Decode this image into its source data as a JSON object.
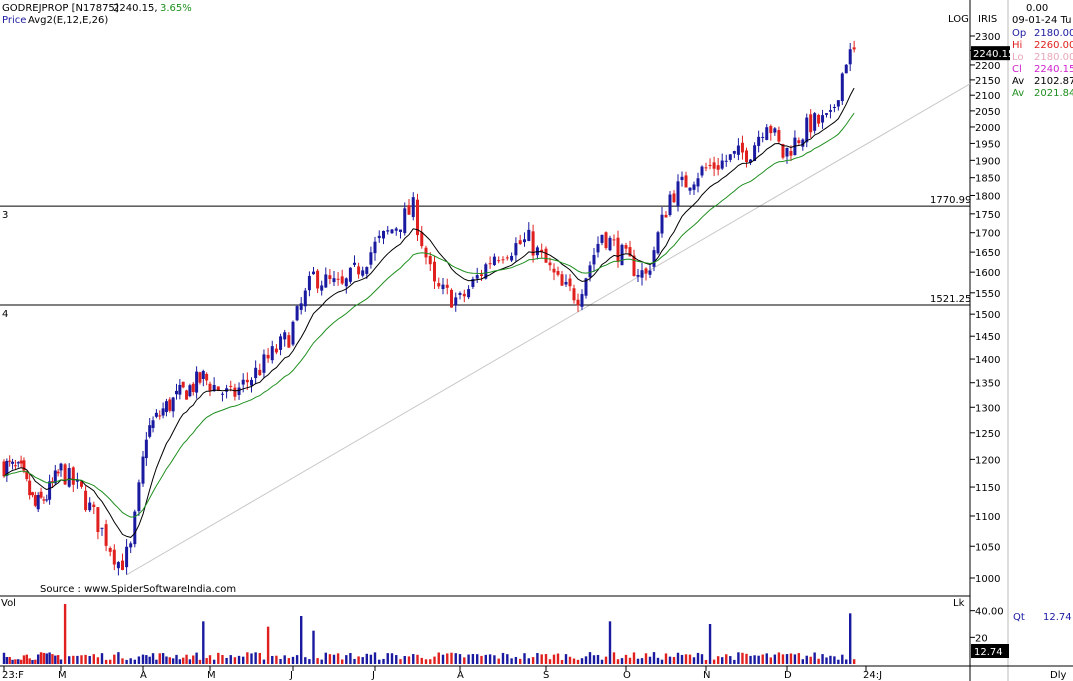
{
  "header": {
    "symbol": "GODREJPROP [N17875]",
    "last": "2240.15,",
    "change": "3.65%",
    "line2_prefix": "Price",
    "line2_indicator": "Avg2(E,12,E,26)",
    "scale_mode": "LOG",
    "brand": "IRIS",
    "source": "Source : www.SpiderSoftwareIndia.com"
  },
  "info_panel": {
    "top_value": "0.00",
    "date": "09-01-24 Tu",
    "rows": [
      {
        "label": "Op",
        "value": "2180.00",
        "color": "#1a1aa0"
      },
      {
        "label": "Hi",
        "value": "2260.00",
        "color": "#e0201e"
      },
      {
        "label": "Lo",
        "value": "2180.00",
        "color": "#e9a8b8"
      },
      {
        "label": "Cl",
        "value": "2240.15",
        "color": "#d020d0"
      },
      {
        "label": "Av",
        "value": "2102.87",
        "color": "#000000"
      },
      {
        "label": "Av",
        "value": "2021.84",
        "color": "#1f8f1f"
      }
    ],
    "vol_label": "Qt",
    "vol_value": "12.74"
  },
  "colors": {
    "up": "#1a1aa0",
    "down": "#e0201e",
    "ema12": "#000000",
    "ema26": "#1f8f1f",
    "trend": "#c8c8c8"
  },
  "chart_data": {
    "type": "candlestick",
    "log_scale": true,
    "y_axis_ticks": [
      1000,
      1050,
      1100,
      1150,
      1200,
      1250,
      1300,
      1350,
      1400,
      1450,
      1500,
      1550,
      1600,
      1650,
      1700,
      1750,
      1800,
      1850,
      1900,
      1950,
      2000,
      2050,
      2100,
      2150,
      2200,
      2250,
      2300
    ],
    "ylim": [
      965,
      2340
    ],
    "x_labels": [
      "23:F",
      "M",
      "A",
      "M",
      "J",
      "J",
      "A",
      "S",
      "O",
      "N",
      "D",
      "24:J"
    ],
    "current_price_label": "2240.15",
    "horizontal_lines": [
      {
        "label": "3",
        "value": 1770.99,
        "value_label": "1770.99"
      },
      {
        "label": "4",
        "value": 1521.25,
        "value_label": "1521.25"
      }
    ],
    "trendline": {
      "from": {
        "month_index": 1.8,
        "price": 1005
      },
      "to": {
        "month_index": 11.2,
        "price": 1975
      }
    },
    "anchors": [
      {
        "m": 0.0,
        "p": 1190
      },
      {
        "m": 0.3,
        "p": 1175
      },
      {
        "m": 0.55,
        "p": 1115
      },
      {
        "m": 0.75,
        "p": 1135
      },
      {
        "m": 1.0,
        "p": 1180
      },
      {
        "m": 1.25,
        "p": 1140
      },
      {
        "m": 1.5,
        "p": 1075
      },
      {
        "m": 1.72,
        "p": 1020
      },
      {
        "m": 1.85,
        "p": 1045
      },
      {
        "m": 2.05,
        "p": 1250
      },
      {
        "m": 2.3,
        "p": 1295
      },
      {
        "m": 2.6,
        "p": 1330
      },
      {
        "m": 2.9,
        "p": 1360
      },
      {
        "m": 3.25,
        "p": 1320
      },
      {
        "m": 3.6,
        "p": 1380
      },
      {
        "m": 3.95,
        "p": 1450
      },
      {
        "m": 4.25,
        "p": 1590
      },
      {
        "m": 4.6,
        "p": 1560
      },
      {
        "m": 5.0,
        "p": 1665
      },
      {
        "m": 5.45,
        "p": 1765
      },
      {
        "m": 5.7,
        "p": 1560
      },
      {
        "m": 6.0,
        "p": 1530
      },
      {
        "m": 6.4,
        "p": 1645
      },
      {
        "m": 6.8,
        "p": 1680
      },
      {
        "m": 7.2,
        "p": 1560
      },
      {
        "m": 7.4,
        "p": 1545
      },
      {
        "m": 7.7,
        "p": 1700
      },
      {
        "m": 8.05,
        "p": 1620
      },
      {
        "m": 8.25,
        "p": 1590
      },
      {
        "m": 8.55,
        "p": 1800
      },
      {
        "m": 8.9,
        "p": 1865
      },
      {
        "m": 9.3,
        "p": 1905
      },
      {
        "m": 9.55,
        "p": 1930
      },
      {
        "m": 9.75,
        "p": 2025
      },
      {
        "m": 9.95,
        "p": 1915
      },
      {
        "m": 10.3,
        "p": 2010
      },
      {
        "m": 10.55,
        "p": 2020
      },
      {
        "m": 10.75,
        "p": 2225
      },
      {
        "m": 10.85,
        "p": 2240
      }
    ],
    "volume": {
      "label": "Vol",
      "unit": "Lk",
      "ticks": [
        {
          "value": 20,
          "label": "20"
        },
        {
          "value": 40,
          "label": "40.00"
        }
      ],
      "ylim": [
        0,
        48
      ],
      "spikes": [
        {
          "m": 1.05,
          "v": 45
        },
        {
          "m": 2.9,
          "v": 32
        },
        {
          "m": 4.1,
          "v": 36
        },
        {
          "m": 7.8,
          "v": 32
        },
        {
          "m": 9.05,
          "v": 30
        },
        {
          "m": 10.8,
          "v": 38
        },
        {
          "m": 4.25,
          "v": 25
        },
        {
          "m": 3.7,
          "v": 28
        }
      ],
      "last_value_label": "12.74"
    },
    "period_label": "Dly"
  }
}
